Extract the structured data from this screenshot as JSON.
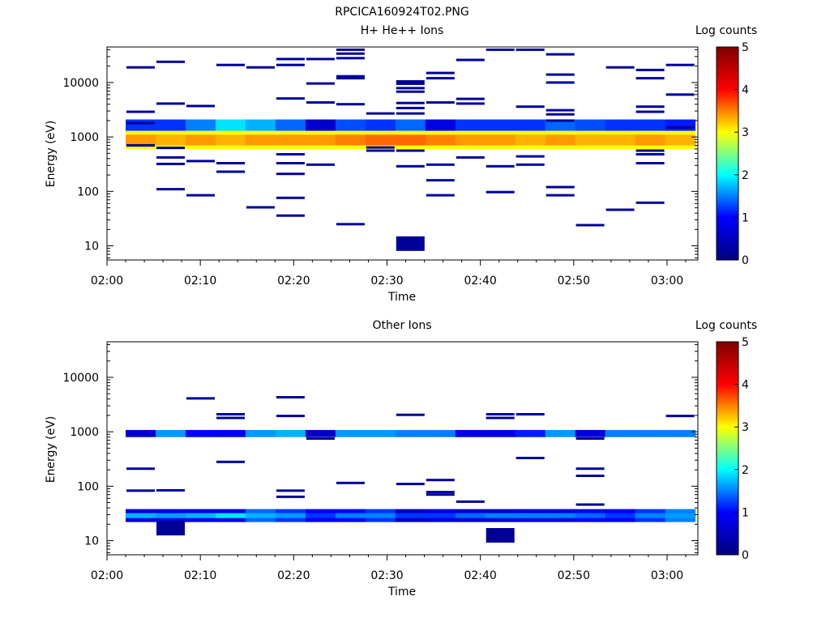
{
  "figure": {
    "title": "RPCICA160924T02.PNG"
  },
  "chart_data": [
    {
      "type": "heatmap",
      "title": "H+ He++ Ions",
      "xlabel": "Time",
      "ylabel": "Energy (eV)",
      "colorbar_label": "Log counts",
      "colorbar_ticks": [
        "0",
        "1",
        "2",
        "3",
        "4",
        "5"
      ],
      "x_ticks": [
        "02:00",
        "02:10",
        "02:20",
        "02:30",
        "02:40",
        "02:50",
        "03:00"
      ],
      "y_ticks": [
        "10",
        "100",
        "1000",
        "10000"
      ],
      "y_scale": "log",
      "ylim": [
        5.5,
        45000
      ],
      "zlim": [
        0,
        5
      ],
      "colormap": [
        "#000080",
        "#0000ff",
        "#00ffff",
        "#ffff00",
        "#ff0000",
        "#800000"
      ],
      "time_range": [
        "02:02",
        "03:03"
      ],
      "time_bins": 19,
      "bands": [
        {
          "e1": 600,
          "e2": 1300,
          "values": [
            3.0,
            3.0,
            3.0,
            3.0,
            3.0,
            3.0,
            3.0,
            3.0,
            3.0,
            3.0,
            3.0,
            3.0,
            3.0,
            3.0,
            3.0,
            3.0,
            3.0,
            3.0,
            3.0
          ]
        },
        {
          "e1": 1300,
          "e2": 2100,
          "values": [
            1.2,
            1.2,
            1.5,
            1.9,
            1.7,
            1.4,
            0.6,
            1.3,
            1.2,
            1.4,
            0.8,
            1.2,
            1.2,
            1.2,
            1.4,
            1.3,
            1.2,
            1.2,
            1.1
          ]
        },
        {
          "e1": 700,
          "e2": 1100,
          "values": [
            3.4,
            3.3,
            3.4,
            3.3,
            3.4,
            3.4,
            3.4,
            3.5,
            3.6,
            3.6,
            3.5,
            3.4,
            3.4,
            3.3,
            3.4,
            3.3,
            3.3,
            3.4,
            3.3
          ]
        }
      ],
      "sparse": [
        {
          "t": 1,
          "e": [
            2900,
            1800,
            700,
            19000
          ]
        },
        {
          "t": 2,
          "e": [
            630,
            420,
            320,
            110,
            24000,
            4100
          ]
        },
        {
          "t": 3,
          "e": [
            3700,
            360,
            85
          ]
        },
        {
          "t": 4,
          "e": [
            330,
            230,
            21000
          ]
        },
        {
          "t": 5,
          "e": [
            51,
            19000
          ]
        },
        {
          "t": 6,
          "e": [
            480,
            330,
            210,
            76,
            36,
            27000,
            21000,
            5100
          ]
        },
        {
          "t": 7,
          "e": [
            310,
            9600,
            27000,
            4300
          ]
        },
        {
          "t": 8,
          "e": [
            25,
            4000,
            34000,
            40000,
            28000,
            13000,
            12000
          ]
        },
        {
          "t": 9,
          "e": [
            2700,
            640,
            560
          ]
        },
        {
          "t": 10,
          "e": [
            11,
            560,
            290,
            9500,
            7900,
            4200,
            3400,
            2700,
            10500,
            6800
          ]
        },
        {
          "t": 11,
          "e": [
            310,
            160,
            85,
            15000,
            12000,
            4300
          ]
        },
        {
          "t": 12,
          "e": [
            26000,
            4100,
            5000,
            420
          ]
        },
        {
          "t": 13,
          "e": [
            290,
            97,
            40000
          ]
        },
        {
          "t": 14,
          "e": [
            3600,
            440,
            40000,
            310
          ]
        },
        {
          "t": 15,
          "e": [
            3100,
            2600,
            14000,
            120,
            33000,
            10000,
            2000,
            85
          ]
        },
        {
          "t": 16,
          "e": [
            24
          ]
        },
        {
          "t": 17,
          "e": [
            46,
            19000
          ]
        },
        {
          "t": 18,
          "e": [
            560,
            480,
            330,
            62,
            3600,
            2900,
            17000,
            12000
          ]
        },
        {
          "t": 19,
          "e": [
            21000,
            6000,
            1500
          ]
        }
      ]
    },
    {
      "type": "heatmap",
      "title": "Other Ions",
      "xlabel": "Time",
      "ylabel": "Energy (eV)",
      "colorbar_label": "Log counts",
      "colorbar_ticks": [
        "0",
        "1",
        "2",
        "3",
        "4",
        "5"
      ],
      "x_ticks": [
        "02:00",
        "02:10",
        "02:20",
        "02:30",
        "02:40",
        "02:50",
        "03:00"
      ],
      "y_ticks": [
        "10",
        "100",
        "1000",
        "10000"
      ],
      "y_scale": "log",
      "ylim": [
        5.5,
        45000
      ],
      "zlim": [
        0,
        5
      ],
      "colormap": [
        "#000080",
        "#0000ff",
        "#00ffff",
        "#ffff00",
        "#ff0000",
        "#800000"
      ],
      "time_range": [
        "02:02",
        "03:03"
      ],
      "time_bins": 19,
      "bands": [
        {
          "e1": 800,
          "e2": 1080,
          "values": [
            0.6,
            1.6,
            1.0,
            0.9,
            1.6,
            1.7,
            0.5,
            1.6,
            1.6,
            1.5,
            1.5,
            0.8,
            0.8,
            1.1,
            1.6,
            0.7,
            1.5,
            1.5,
            1.5
          ]
        },
        {
          "e1": 22,
          "e2": 38,
          "values": [
            0.7,
            0.8,
            0.8,
            0.8,
            1.4,
            1.2,
            0.9,
            1.0,
            1.2,
            0.5,
            0.7,
            0.6,
            0.6,
            0.7,
            0.7,
            1.0,
            0.9,
            1.2,
            1.5
          ]
        },
        {
          "e1": 26,
          "e2": 32,
          "values": [
            1.7,
            1.6,
            1.7,
            1.9,
            1.7,
            1.6,
            1.2,
            1.5,
            1.5,
            1.2,
            1.2,
            1.4,
            1.5,
            1.5,
            1.5,
            1.4,
            1.2,
            1.5,
            1.6
          ]
        }
      ],
      "sparse": [
        {
          "t": 1,
          "e": [
            210,
            83
          ]
        },
        {
          "t": 2,
          "e": [
            17,
            84
          ]
        },
        {
          "t": 3,
          "e": [
            4100
          ]
        },
        {
          "t": 4,
          "e": [
            2100,
            1800,
            280
          ]
        },
        {
          "t": 6,
          "e": [
            4300,
            1950,
            83,
            64
          ]
        },
        {
          "t": 7,
          "e": [
            750
          ]
        },
        {
          "t": 8,
          "e": [
            115
          ]
        },
        {
          "t": 10,
          "e": [
            2050,
            110
          ]
        },
        {
          "t": 11,
          "e": [
            130,
            78,
            70
          ]
        },
        {
          "t": 12,
          "e": [
            52
          ]
        },
        {
          "t": 13,
          "e": [
            12.5,
            2100,
            1800
          ]
        },
        {
          "t": 14,
          "e": [
            2100,
            330
          ]
        },
        {
          "t": 16,
          "e": [
            210,
            155,
            46,
            750
          ]
        },
        {
          "t": 19,
          "e": [
            1950
          ]
        }
      ]
    }
  ]
}
